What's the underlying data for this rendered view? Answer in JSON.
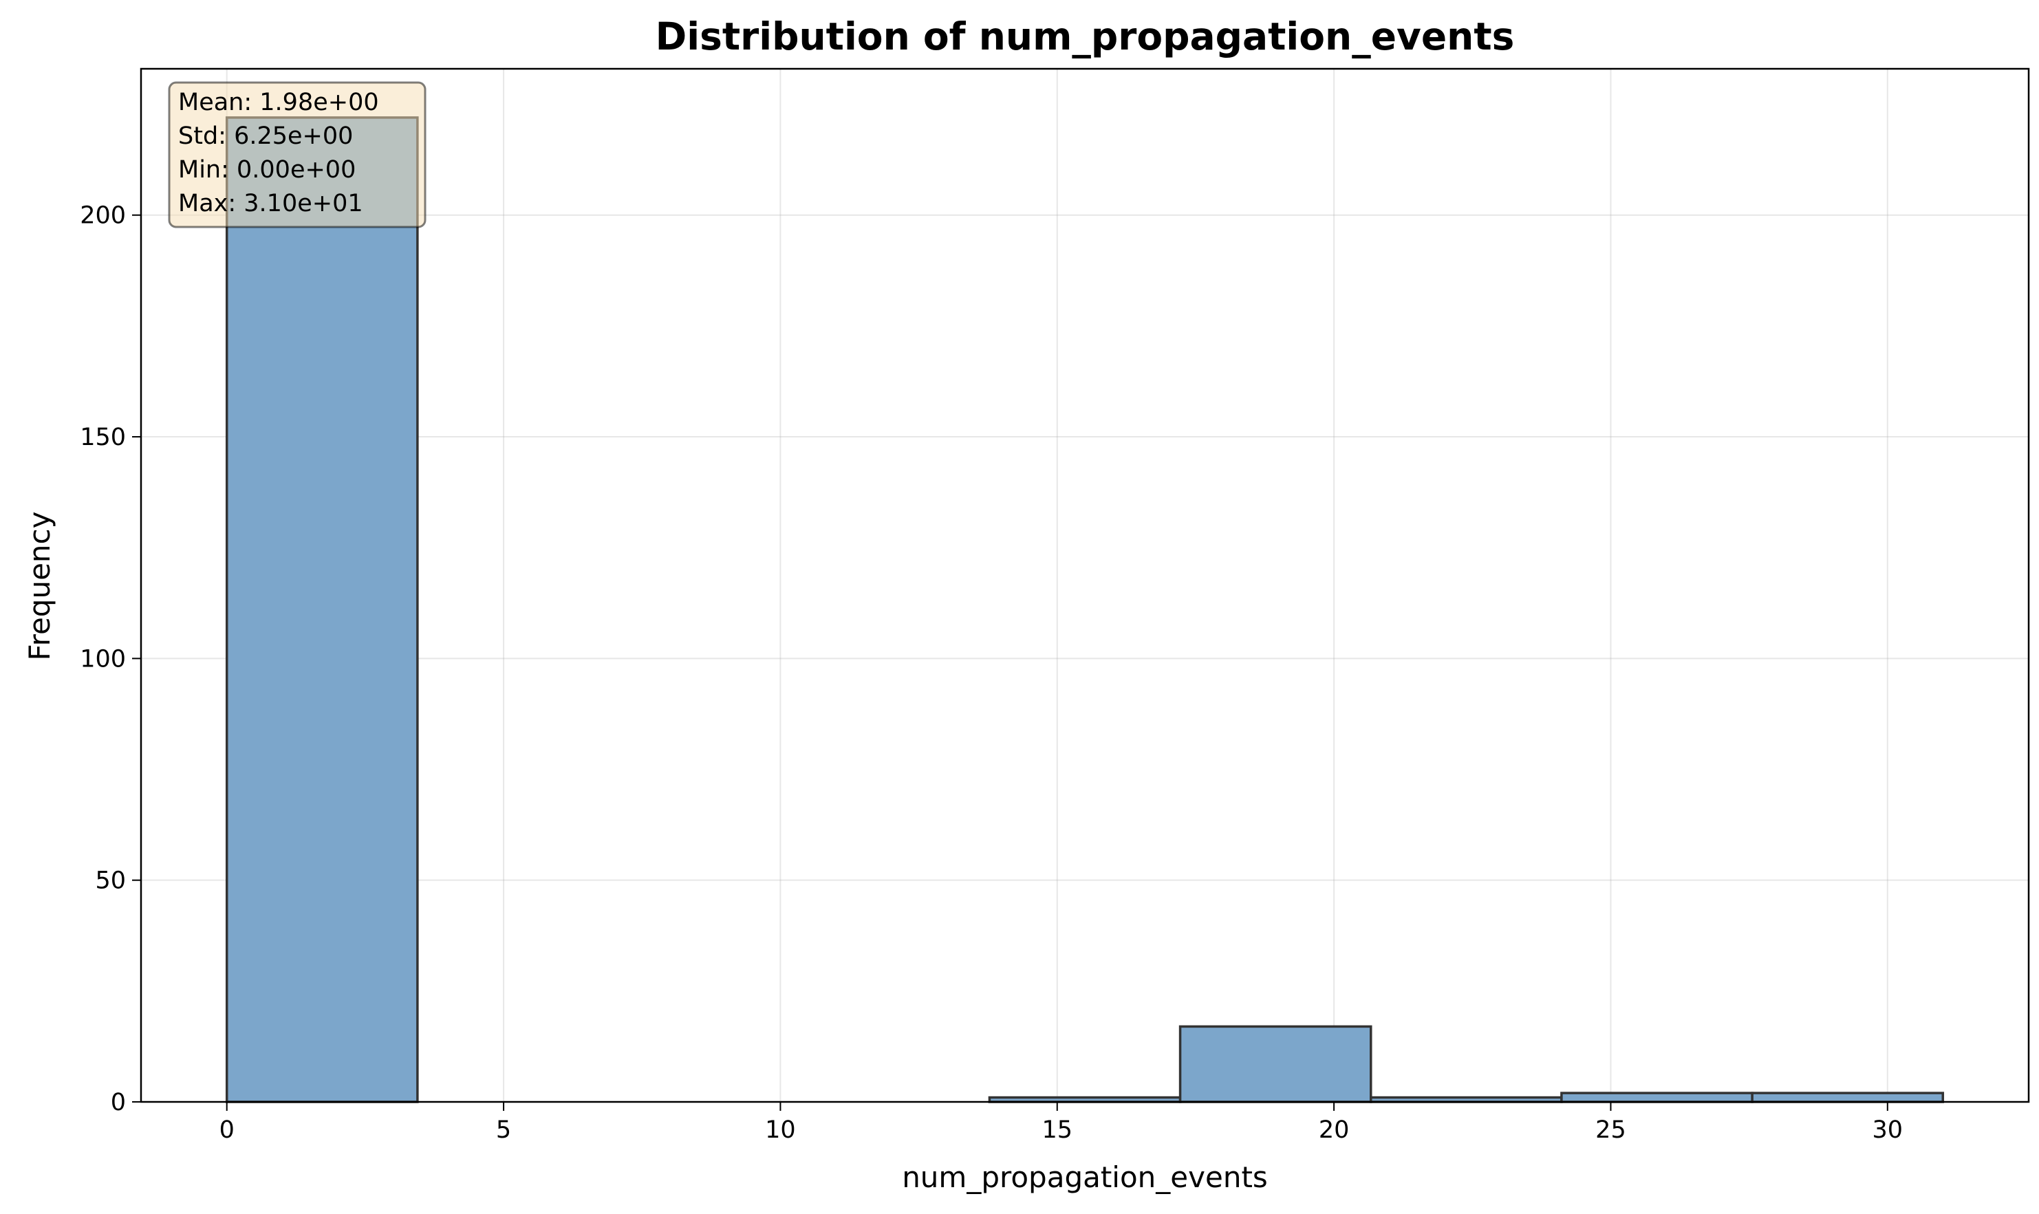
{
  "chart_data": {
    "type": "bar",
    "title": "Distribution of num_propagation_events",
    "xlabel": "num_propagation_events",
    "ylabel": "Frequency",
    "xlim": [
      -1.55,
      32.55
    ],
    "ylim": [
      0,
      233
    ],
    "xticks": [
      0,
      5,
      10,
      15,
      20,
      25,
      30
    ],
    "yticks": [
      0,
      50,
      100,
      150,
      200
    ],
    "grid": true,
    "bar_color": "#7ca6cb",
    "edge_color": "#333333",
    "bins": [
      {
        "x0": 0.0,
        "x1": 3.444,
        "count": 222
      },
      {
        "x0": 3.444,
        "x1": 6.889,
        "count": 0
      },
      {
        "x0": 6.889,
        "x1": 10.333,
        "count": 0
      },
      {
        "x0": 10.333,
        "x1": 13.778,
        "count": 0
      },
      {
        "x0": 13.778,
        "x1": 17.222,
        "count": 1
      },
      {
        "x0": 17.222,
        "x1": 20.667,
        "count": 17
      },
      {
        "x0": 20.667,
        "x1": 24.111,
        "count": 1
      },
      {
        "x0": 24.111,
        "x1": 27.556,
        "count": 2
      },
      {
        "x0": 27.556,
        "x1": 31.0,
        "count": 2
      }
    ],
    "stats_box": {
      "lines": [
        "Mean: 1.98e+00",
        "Std: 6.25e+00",
        "Min: 0.00e+00",
        "Max: 3.10e+01"
      ],
      "background": "#f5deb3",
      "placement": "top-left"
    }
  }
}
